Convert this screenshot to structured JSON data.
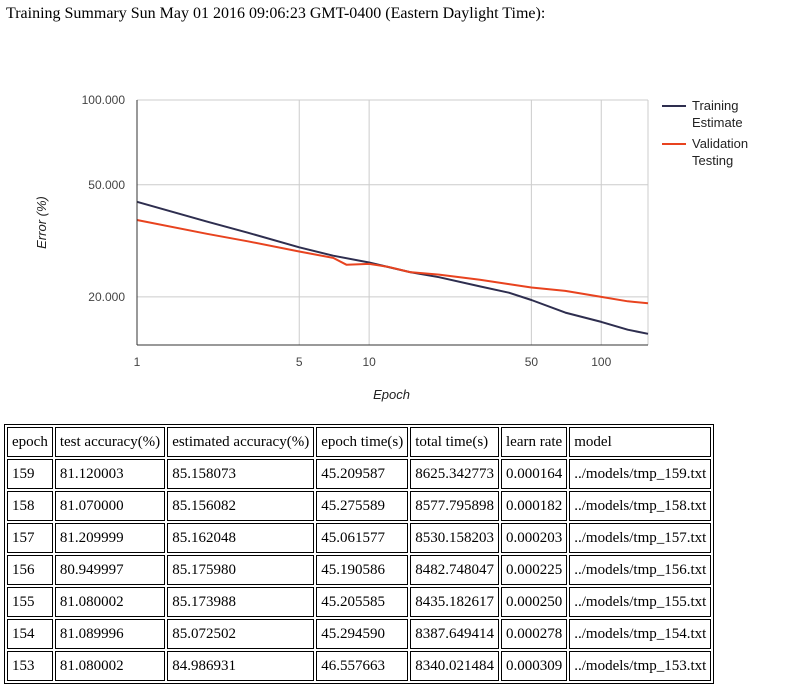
{
  "summary_title": "Training Summary Sun May 01 2016 09:06:23 GMT-0400 (Eastern Daylight Time):",
  "chart_data": {
    "type": "line",
    "xlabel": "Epoch",
    "ylabel": "Error (%)",
    "x_scale": "log",
    "y_scale": "log",
    "xlim": [
      1,
      159
    ],
    "ylim": [
      13.5,
      100
    ],
    "x_ticks": [
      1,
      5,
      10,
      50,
      100
    ],
    "y_ticks": [
      20,
      50,
      100
    ],
    "x_tick_labels": [
      "1",
      "5",
      "10",
      "50",
      "100"
    ],
    "y_tick_labels": [
      "20.000",
      "50.000",
      "100.000"
    ],
    "grid": true,
    "legend_position": "right",
    "series": [
      {
        "name": "Training Estimate",
        "color": "#2e2e4f",
        "x": [
          1,
          2,
          3,
          5,
          7,
          10,
          15,
          20,
          30,
          40,
          50,
          70,
          100,
          130,
          159
        ],
        "y": [
          43.5,
          37.0,
          33.8,
          30.0,
          28.0,
          26.5,
          24.5,
          23.5,
          21.8,
          20.7,
          19.5,
          17.6,
          16.3,
          15.3,
          14.8
        ]
      },
      {
        "name": "Validation Testing",
        "color": "#e8431f",
        "x": [
          1,
          2,
          3,
          5,
          7,
          8,
          10,
          12,
          15,
          20,
          30,
          40,
          50,
          70,
          100,
          130,
          159
        ],
        "y": [
          37.5,
          33.5,
          31.5,
          29.0,
          27.5,
          26.0,
          26.2,
          25.6,
          24.5,
          24.0,
          23.0,
          22.2,
          21.6,
          21.0,
          20.0,
          19.3,
          19.0
        ]
      }
    ]
  },
  "table": {
    "headers": [
      "epoch",
      "test accuracy(%)",
      "estimated accuracy(%)",
      "epoch time(s)",
      "total time(s)",
      "learn rate",
      "model"
    ],
    "rows": [
      [
        "159",
        "81.120003",
        "85.158073",
        "45.209587",
        "8625.342773",
        "0.000164",
        "../models/tmp_159.txt"
      ],
      [
        "158",
        "81.070000",
        "85.156082",
        "45.275589",
        "8577.795898",
        "0.000182",
        "../models/tmp_158.txt"
      ],
      [
        "157",
        "81.209999",
        "85.162048",
        "45.061577",
        "8530.158203",
        "0.000203",
        "../models/tmp_157.txt"
      ],
      [
        "156",
        "80.949997",
        "85.175980",
        "45.190586",
        "8482.748047",
        "0.000225",
        "../models/tmp_156.txt"
      ],
      [
        "155",
        "81.080002",
        "85.173988",
        "45.205585",
        "8435.182617",
        "0.000250",
        "../models/tmp_155.txt"
      ],
      [
        "154",
        "81.089996",
        "85.072502",
        "45.294590",
        "8387.649414",
        "0.000278",
        "../models/tmp_154.txt"
      ],
      [
        "153",
        "81.080002",
        "84.986931",
        "46.557663",
        "8340.021484",
        "0.000309",
        "../models/tmp_153.txt"
      ]
    ]
  }
}
